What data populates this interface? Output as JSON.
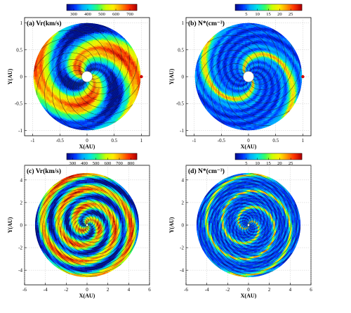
{
  "colorscale": [
    "#000a8c",
    "#0033ff",
    "#00aaff",
    "#00e6e6",
    "#33ff66",
    "#ccff00",
    "#ffee00",
    "#ff9900",
    "#ff3300",
    "#b30000"
  ],
  "panels": [
    {
      "id": "a",
      "title": "(a) Vr(km/s)",
      "variable": "velocity",
      "xlabel": "X(AU)",
      "ylabel": "Y(AU)",
      "xticks": [
        "-1",
        "-0.5",
        "0",
        "0.5",
        "1"
      ],
      "yticks": [
        "-1",
        "-0.5",
        "0",
        "0.5",
        "1"
      ],
      "xlim": [
        -1.15,
        1.15
      ],
      "ylim": [
        -1.1,
        1.1
      ],
      "r_outer": 1,
      "r_inner": 0.1,
      "colorbar": {
        "ticks": [
          "300",
          "400",
          "500",
          "600",
          "700"
        ],
        "range": [
          250,
          750
        ]
      },
      "chart_data": {
        "type": "heatmap",
        "geometry": "polar",
        "value_range": [
          250,
          750
        ],
        "spiral_arms": 2,
        "spiral_turns": 0.55,
        "radial_range_au": [
          0.1,
          1
        ]
      }
    },
    {
      "id": "b",
      "title": "(b) N*(cm⁻³)",
      "variable": "density",
      "xlabel": "X(AU)",
      "ylabel": "Y(AU)",
      "xticks": [
        "-1",
        "-0.5",
        "0",
        "0.5",
        "1"
      ],
      "yticks": [
        "-1",
        "-0.5",
        "0",
        "0.5",
        "1"
      ],
      "xlim": [
        -1.15,
        1.15
      ],
      "ylim": [
        -1.1,
        1.1
      ],
      "r_outer": 1,
      "r_inner": 0.1,
      "colorbar": {
        "ticks": [
          "5",
          "10",
          "15",
          "20",
          "25"
        ],
        "range": [
          0,
          30
        ]
      },
      "chart_data": {
        "type": "heatmap",
        "geometry": "polar",
        "value_range": [
          0,
          30
        ],
        "spiral_arms": 2,
        "spiral_turns": 0.55,
        "radial_range_au": [
          0.1,
          1
        ]
      }
    },
    {
      "id": "c",
      "title": "(c) Vr(km/s)",
      "variable": "velocity",
      "xlabel": "X(AU)",
      "ylabel": "Y(AU)",
      "xticks": [
        "-6",
        "-4",
        "-2",
        "0",
        "2",
        "4",
        "6"
      ],
      "yticks": [
        "-4",
        "-2",
        "0",
        "2",
        "4"
      ],
      "xlim": [
        -6,
        6
      ],
      "ylim": [
        -5.3,
        5.3
      ],
      "r_outer": 5,
      "r_inner": 0.1,
      "colorbar": {
        "ticks": [
          "300",
          "400",
          "500",
          "600",
          "700",
          "800"
        ],
        "range": [
          250,
          850
        ]
      },
      "chart_data": {
        "type": "heatmap",
        "geometry": "polar",
        "value_range": [
          250,
          850
        ],
        "spiral_arms": 2,
        "spiral_turns": 1.6,
        "radial_range_au": [
          0.1,
          5
        ]
      }
    },
    {
      "id": "d",
      "title": "(d) N*(cm⁻³)",
      "variable": "density",
      "xlabel": "X(AU)",
      "ylabel": "Y(AU)",
      "xticks": [
        "-6",
        "-4",
        "-2",
        "0",
        "2",
        "4",
        "6"
      ],
      "yticks": [
        "-4",
        "-2",
        "0",
        "2",
        "4"
      ],
      "xlim": [
        -6,
        6
      ],
      "ylim": [
        -5.3,
        5.3
      ],
      "r_outer": 5,
      "r_inner": 0.1,
      "colorbar": {
        "ticks": [
          "5",
          "10",
          "15",
          "20",
          "25"
        ],
        "range": [
          0,
          30
        ]
      },
      "chart_data": {
        "type": "heatmap",
        "geometry": "polar",
        "value_range": [
          0,
          30
        ],
        "spiral_arms": 2,
        "spiral_turns": 1.6,
        "radial_range_au": [
          0.1,
          5
        ]
      }
    }
  ]
}
